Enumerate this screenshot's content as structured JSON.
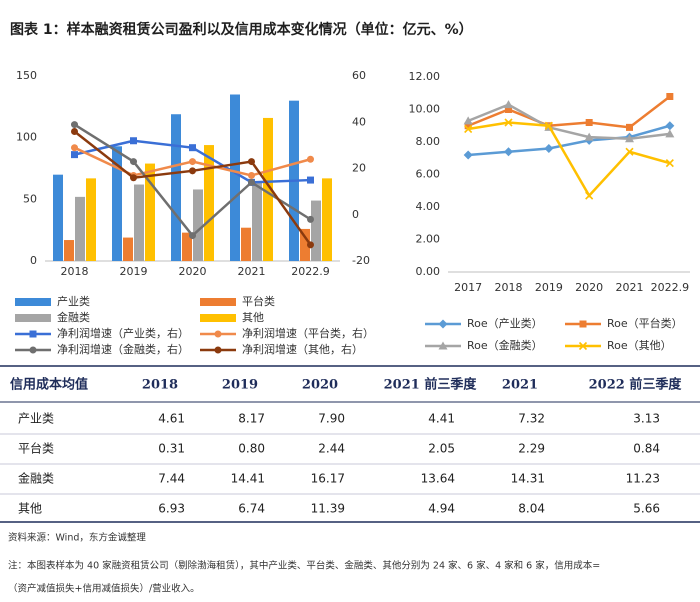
{
  "title": "图表 1：样本融资租赁公司盈利以及信用成本变化情况（单位：亿元、%）",
  "chart_data": [
    {
      "type": "combo",
      "categories": [
        "2018",
        "2019",
        "2020",
        "2021",
        "2022.9"
      ],
      "ylim": [
        0,
        150
      ],
      "yticks": [
        0,
        50,
        100,
        150
      ],
      "y2lim": [
        -20,
        60
      ],
      "y2ticks": [
        -20,
        0,
        20,
        40,
        60
      ],
      "grid": false,
      "series": [
        {
          "name": "产业类",
          "type": "bar",
          "color": "#3d8ad8",
          "values": [
            70,
            93,
            119,
            135,
            130
          ]
        },
        {
          "name": "平台类",
          "type": "bar",
          "color": "#ed7d31",
          "values": [
            17,
            19,
            23,
            27,
            26
          ]
        },
        {
          "name": "金融类",
          "type": "bar",
          "color": "#a5a5a5",
          "values": [
            52,
            62,
            58,
            64,
            49
          ]
        },
        {
          "name": "其他",
          "type": "bar",
          "color": "#ffc000",
          "values": [
            67,
            79,
            94,
            116,
            67
          ]
        },
        {
          "name": "净利润增速（产业类，右）",
          "type": "line",
          "axis": "y2",
          "marker": "square",
          "color": "#3a6fd6",
          "values": [
            26,
            32,
            29,
            14,
            15
          ]
        },
        {
          "name": "净利润增速（平台类，右）",
          "type": "line",
          "axis": "y2",
          "marker": "circle",
          "color": "#f08a4b",
          "values": [
            29,
            17,
            23,
            17,
            24
          ]
        },
        {
          "name": "净利润增速（金融类，右）",
          "type": "line",
          "axis": "y2",
          "marker": "circle",
          "color": "#6f6f6f",
          "values": [
            39,
            23,
            -9,
            14,
            -2
          ]
        },
        {
          "name": "净利润增速（其他，右）",
          "type": "line",
          "axis": "y2",
          "marker": "circle",
          "color": "#8b3a0e",
          "values": [
            36,
            16,
            19,
            23,
            -13
          ]
        }
      ]
    },
    {
      "type": "line",
      "categories": [
        "2017",
        "2018",
        "2019",
        "2020",
        "2021",
        "2022.9"
      ],
      "ylim": [
        0,
        12
      ],
      "yticks": [
        {
          "value": 0,
          "label": "0.00"
        },
        {
          "value": 2,
          "label": "2.00"
        },
        {
          "value": 4,
          "label": "4.00"
        },
        {
          "value": 6,
          "label": "6.00"
        },
        {
          "value": 8,
          "label": "8.00"
        },
        {
          "value": 10,
          "label": "10.00"
        },
        {
          "value": 12,
          "label": "12.00"
        }
      ],
      "grid": false,
      "series": [
        {
          "name": "Roe（产业类）",
          "marker": "diamond",
          "color": "#5b9bd5",
          "values": [
            7.2,
            7.4,
            7.6,
            8.1,
            8.3,
            9.0
          ]
        },
        {
          "name": "Roe（平台类）",
          "marker": "square",
          "color": "#ed7d31",
          "values": [
            9.0,
            10.0,
            9.0,
            9.2,
            8.9,
            10.8
          ]
        },
        {
          "name": "Roe（金融类）",
          "marker": "triangle",
          "color": "#a5a5a5",
          "values": [
            9.3,
            10.3,
            8.9,
            8.3,
            8.2,
            8.5
          ]
        },
        {
          "name": "Roe（其他）",
          "marker": "x",
          "color": "#ffc000",
          "values": [
            8.8,
            9.2,
            9.0,
            4.7,
            7.4,
            6.7
          ]
        }
      ]
    }
  ],
  "table": {
    "header": [
      "信用成本均值",
      "2018",
      "2019",
      "2020",
      "2021 前三季度",
      "2021",
      "2022 前三季度"
    ],
    "rows": [
      [
        "产业类",
        "4.61",
        "8.17",
        "7.90",
        "4.41",
        "7.32",
        "3.13"
      ],
      [
        "平台类",
        "0.31",
        "0.80",
        "2.44",
        "2.05",
        "2.29",
        "0.84"
      ],
      [
        "金融类",
        "7.44",
        "14.41",
        "16.17",
        "13.64",
        "14.31",
        "11.23"
      ],
      [
        "其他",
        "6.93",
        "6.74",
        "11.39",
        "4.94",
        "8.04",
        "5.66"
      ]
    ]
  },
  "source": "资料来源：Wind，东方金诚整理",
  "note": [
    "注：本图表样本为 40 家融资租赁公司（剔除渤海租赁），其中产业类、平台类、金融类、其他分别为 24 家、6 家、4 家和 6 家，信用成本=",
    "（资产减值损失+信用减值损失）/营业收入。"
  ]
}
